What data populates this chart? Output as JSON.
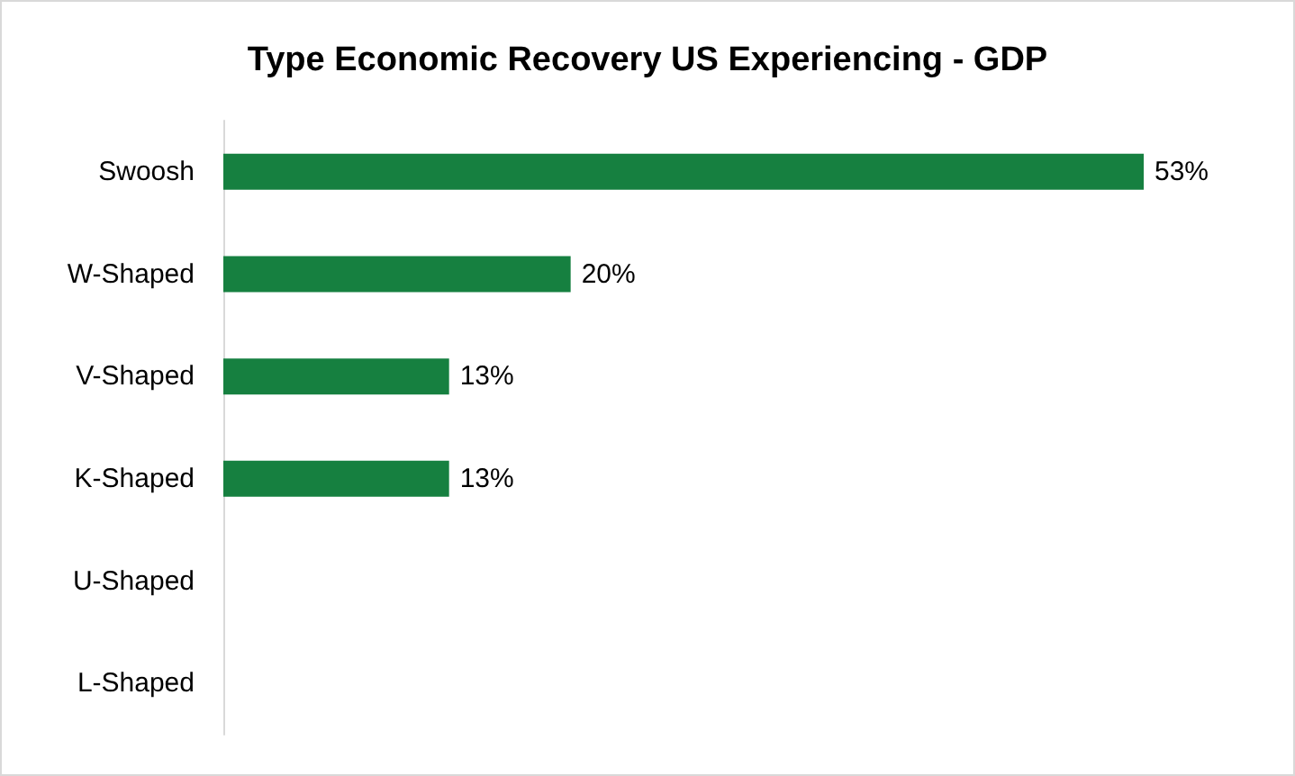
{
  "chart_data": {
    "type": "bar",
    "orientation": "horizontal",
    "title": "Type Economic Recovery US Experiencing - GDP",
    "categories": [
      "Swoosh",
      "W-Shaped",
      "V-Shaped",
      "K-Shaped",
      "U-Shaped",
      "L-Shaped"
    ],
    "values": [
      53,
      20,
      13,
      13,
      null,
      null
    ],
    "value_labels": [
      "53%",
      "20%",
      "13%",
      "13%",
      null,
      null
    ],
    "color": "#168040"
  }
}
